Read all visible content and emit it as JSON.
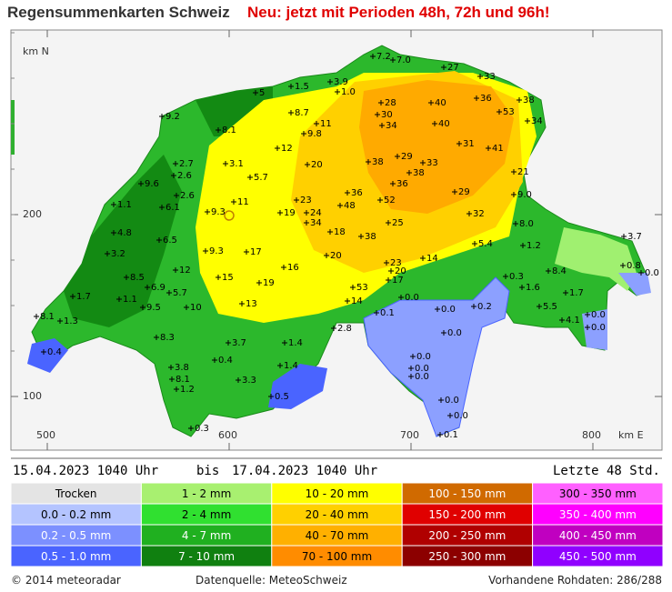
{
  "header": {
    "title": "Regensummenkarten Schweiz",
    "notice": "Neu: jetzt mit Perioden 48h, 72h und 96h!"
  },
  "map": {
    "axis_labels": {
      "north": "km N",
      "east": "km E"
    },
    "y_ticks": [
      "200",
      "100"
    ],
    "x_ticks": [
      "500",
      "600",
      "700",
      "800"
    ],
    "stations": [
      "7.2",
      "7.0",
      "27",
      "33",
      "3.9",
      "1.0",
      "1.5",
      "5",
      "28",
      "40",
      "36",
      "38",
      "53",
      "34",
      "9.2",
      "8.7",
      "30",
      "40",
      "11",
      "9.8",
      "34",
      "8.1",
      "12",
      "31",
      "41",
      "2.7",
      "3.1",
      "2.6",
      "5.7",
      "20",
      "38",
      "29",
      "33",
      "38",
      "21",
      "9.6",
      "36",
      "29",
      "9.0",
      "2.6",
      "11",
      "36",
      "52",
      "23",
      "48",
      "1.1",
      "6.1",
      "9.3",
      "19",
      "24",
      "32",
      "34",
      "25",
      "8.0",
      "4.8",
      "18",
      "38",
      "3.7",
      "6.5",
      "5.4",
      "1.2",
      "3.2",
      "9.3",
      "17",
      "20",
      "14",
      "23",
      "0.8",
      "0.0",
      "12",
      "16",
      "20",
      "8.4",
      "0.3",
      "8.5",
      "15",
      "19",
      "17",
      "53",
      "1.6",
      "6.9",
      "5.7",
      "1.7",
      "1.1",
      "1.7",
      "14",
      "0.0",
      "13",
      "10",
      "5.5",
      "9.5",
      "0.0",
      "0.2",
      "0.1",
      "8.1",
      "1.3",
      "4.1",
      "0.0",
      "0.0",
      "2.8",
      "0.0",
      "8.3",
      "3.7",
      "1.4",
      "0.4",
      "0.0",
      "0.4",
      "3.8",
      "1.4",
      "0.0",
      "8.1",
      "0.0",
      "3.3",
      "1.2",
      "0.5",
      "0.0",
      "0.0",
      "0.3",
      "0.1"
    ]
  },
  "period": {
    "from": "15.04.2023 1040 Uhr",
    "separator": "bis",
    "to": "17.04.2023 1040 Uhr",
    "window": "Letzte 48 Std."
  },
  "legend": {
    "rows": [
      [
        "Trocken",
        "1 - 2 mm",
        "10 - 20 mm",
        "100 - 150 mm",
        "300 - 350 mm"
      ],
      [
        "0.0 - 0.2 mm",
        "2 - 4 mm",
        "20 - 40 mm",
        "150 - 200 mm",
        "350 - 400 mm"
      ],
      [
        "0.2 - 0.5 mm",
        "4 - 7 mm",
        "40 - 70 mm",
        "200 - 250 mm",
        "400 - 450 mm"
      ],
      [
        "0.5 - 1.0 mm",
        "7 - 10 mm",
        "70 - 100 mm",
        "250 - 300 mm",
        "450 - 500 mm"
      ]
    ]
  },
  "footer": {
    "copyright": "© 2014 meteoradar",
    "source": "Datenquelle: MeteoSchweiz",
    "raw_data": "Vorhandene Rohdaten: 286/288"
  }
}
